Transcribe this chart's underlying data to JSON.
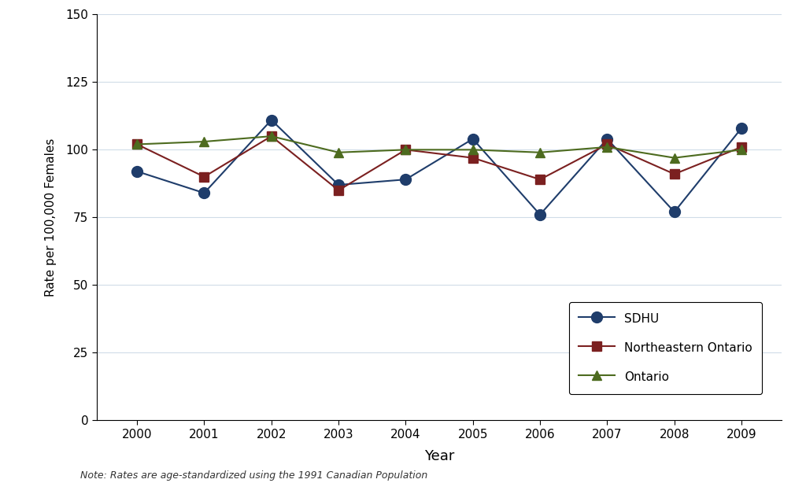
{
  "years": [
    2000,
    2001,
    2002,
    2003,
    2004,
    2005,
    2006,
    2007,
    2008,
    2009
  ],
  "sdhu": [
    92,
    84,
    111,
    87,
    89,
    104,
    76,
    104,
    77,
    108
  ],
  "northeastern_ontario": [
    102,
    90,
    105,
    85,
    100,
    97,
    89,
    102,
    91,
    101
  ],
  "ontario": [
    102,
    103,
    105,
    99,
    100,
    100,
    99,
    101,
    97,
    100
  ],
  "sdhu_color": "#1f3d6b",
  "northeastern_color": "#7b2020",
  "ontario_color": "#4d6b1f",
  "ylabel": "Rate per 100,000 Females",
  "xlabel": "Year",
  "ylim": [
    0,
    150
  ],
  "yticks": [
    0,
    25,
    50,
    75,
    100,
    125,
    150
  ],
  "legend_labels": [
    "SDHU",
    "Northeastern Ontario",
    "Ontario"
  ],
  "note": "Note: Rates are age-standardized using the 1991 Canadian Population",
  "background_color": "#ffffff",
  "grid_color": "#d0dce8"
}
